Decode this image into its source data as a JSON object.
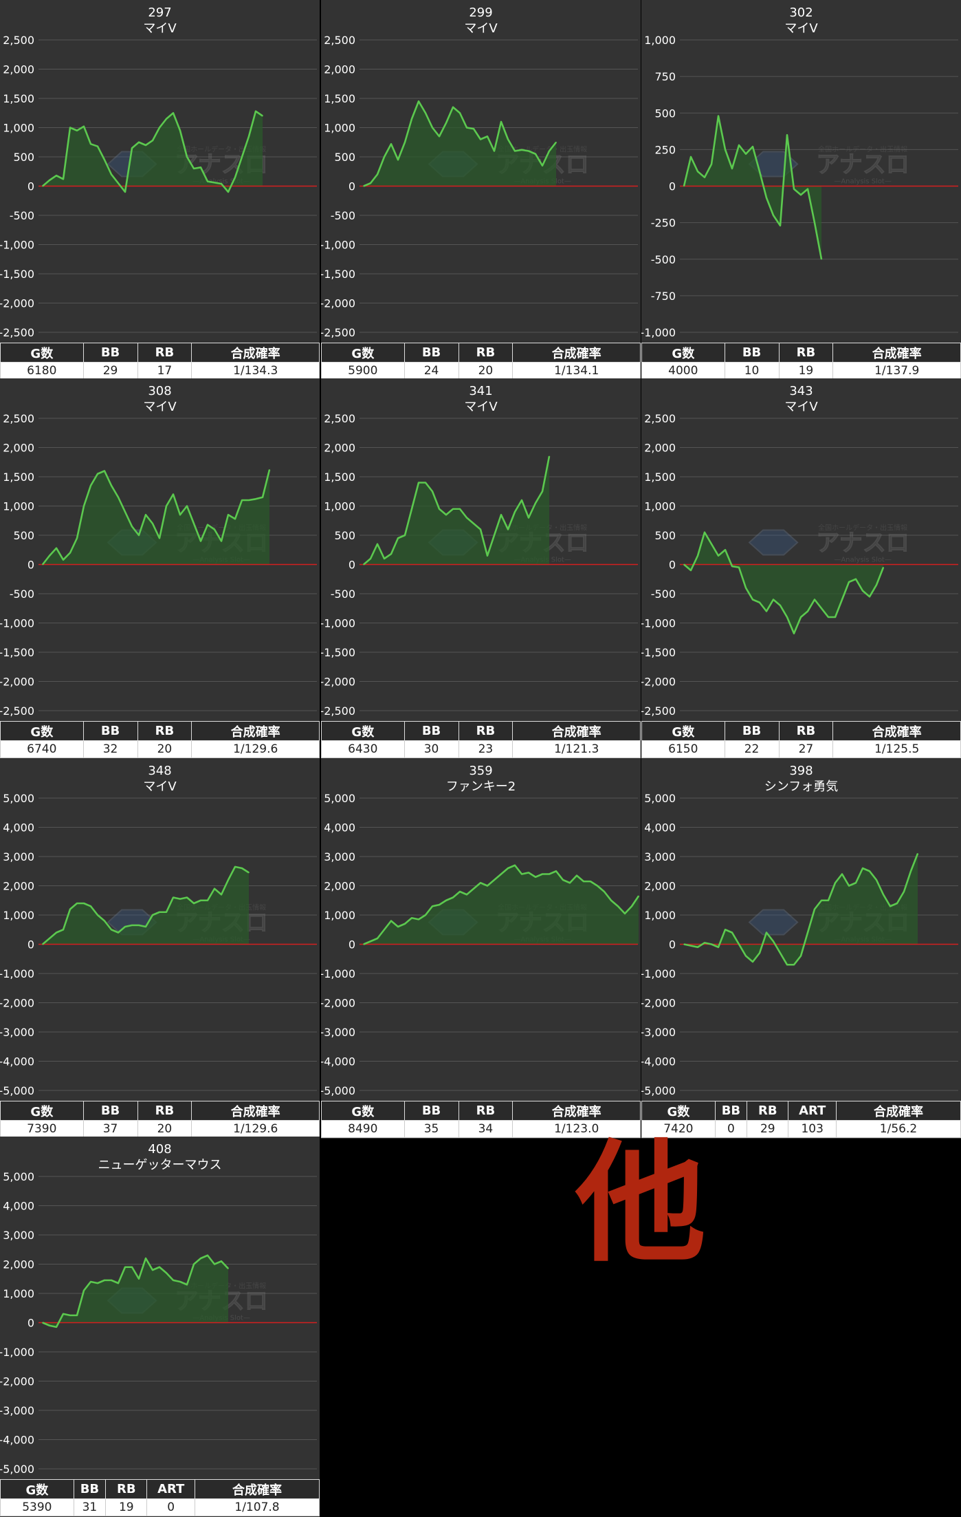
{
  "header_labels": {
    "g": "G数",
    "bb": "BB",
    "rb": "RB",
    "art": "ART",
    "rate": "合成確率"
  },
  "other_label": "他",
  "colors": {
    "line": "#5cc94f",
    "fill": "#2b5a2b",
    "zero_line": "#d41f1f",
    "panel": "#333333",
    "grid": "#555555"
  },
  "watermark": {
    "main": "アナスロ",
    "sub": "—Analysis Slot—",
    "top": "全国ホールデータ・出玉情報"
  },
  "chart_data": [
    {
      "type": "line",
      "number": "297",
      "model": "マイV",
      "ylim": [
        -2500,
        2500
      ],
      "yticks": [
        2500,
        2000,
        1500,
        1000,
        500,
        0,
        -500,
        -1000,
        -1500,
        -2000,
        -2500
      ],
      "values": [
        0,
        100,
        180,
        120,
        1000,
        950,
        1020,
        720,
        680,
        450,
        200,
        50,
        -100,
        650,
        750,
        700,
        780,
        1000,
        1150,
        1250,
        950,
        500,
        300,
        320,
        80,
        60,
        40,
        -100,
        150,
        500,
        850,
        1280,
        1200
      ],
      "stats": {
        "g": "6180",
        "bb": "29",
        "rb": "17",
        "art": null,
        "rate": "1/134.3"
      }
    },
    {
      "type": "line",
      "number": "299",
      "model": "マイV",
      "ylim": [
        -2500,
        2500
      ],
      "yticks": [
        2500,
        2000,
        1500,
        1000,
        500,
        0,
        -500,
        -1000,
        -1500,
        -2000,
        -2500
      ],
      "values": [
        0,
        50,
        200,
        500,
        720,
        450,
        750,
        1150,
        1450,
        1250,
        1000,
        850,
        1080,
        1350,
        1250,
        1000,
        980,
        800,
        850,
        600,
        1100,
        800,
        600,
        620,
        600,
        550,
        350,
        600,
        750
      ],
      "stats": {
        "g": "5900",
        "bb": "24",
        "rb": "20",
        "art": null,
        "rate": "1/134.1"
      }
    },
    {
      "type": "line",
      "number": "302",
      "model": "マイV",
      "ylim": [
        -1000,
        1000
      ],
      "yticks": [
        1000,
        750,
        500,
        250,
        0,
        -250,
        -500,
        -750,
        -1000
      ],
      "values": [
        0,
        200,
        100,
        60,
        150,
        480,
        250,
        120,
        280,
        220,
        270,
        100,
        -80,
        -200,
        -270,
        350,
        -20,
        -60,
        -20,
        -250,
        -500
      ],
      "stats": {
        "g": "4000",
        "bb": "10",
        "rb": "19",
        "art": null,
        "rate": "1/137.9"
      }
    },
    {
      "type": "line",
      "number": "308",
      "model": "マイV",
      "ylim": [
        -2500,
        2500
      ],
      "yticks": [
        2500,
        2000,
        1500,
        1000,
        500,
        0,
        -500,
        -1000,
        -1500,
        -2000,
        -2500
      ],
      "values": [
        0,
        150,
        280,
        80,
        200,
        450,
        1000,
        1350,
        1550,
        1600,
        1350,
        1150,
        900,
        650,
        500,
        850,
        700,
        450,
        1000,
        1200,
        850,
        1000,
        700,
        400,
        680,
        600,
        400,
        850,
        780,
        1100,
        1100,
        1120,
        1150,
        1620
      ],
      "stats": {
        "g": "6740",
        "bb": "32",
        "rb": "20",
        "art": null,
        "rate": "1/129.6"
      }
    },
    {
      "type": "line",
      "number": "341",
      "model": "マイV",
      "ylim": [
        -2500,
        2500
      ],
      "yticks": [
        2500,
        2000,
        1500,
        1000,
        500,
        0,
        -500,
        -1000,
        -1500,
        -2000,
        -2500
      ],
      "values": [
        0,
        100,
        350,
        100,
        180,
        450,
        500,
        950,
        1400,
        1400,
        1250,
        950,
        850,
        950,
        950,
        800,
        700,
        600,
        150,
        500,
        850,
        600,
        900,
        1100,
        800,
        1050,
        1250,
        1850
      ],
      "stats": {
        "g": "6430",
        "bb": "30",
        "rb": "23",
        "art": null,
        "rate": "1/121.3"
      }
    },
    {
      "type": "line",
      "number": "343",
      "model": "マイV",
      "ylim": [
        -2500,
        2500
      ],
      "yticks": [
        2500,
        2000,
        1500,
        1000,
        500,
        0,
        -500,
        -1000,
        -1500,
        -2000,
        -2500
      ],
      "values": [
        0,
        -100,
        150,
        550,
        350,
        150,
        250,
        -30,
        -50,
        -400,
        -600,
        -650,
        -800,
        -600,
        -700,
        -900,
        -1180,
        -900,
        -800,
        -600,
        -750,
        -900,
        -900,
        -600,
        -300,
        -250,
        -450,
        -550,
        -350,
        -50
      ],
      "stats": {
        "g": "6150",
        "bb": "22",
        "rb": "27",
        "art": null,
        "rate": "1/125.5"
      }
    },
    {
      "type": "line",
      "number": "348",
      "model": "マイV",
      "ylim": [
        -5000,
        5000
      ],
      "yticks": [
        5000,
        4000,
        3000,
        2000,
        1000,
        0,
        -1000,
        -2000,
        -3000,
        -4000,
        -5000
      ],
      "values": [
        0,
        200,
        400,
        500,
        1200,
        1400,
        1400,
        1300,
        1000,
        800,
        500,
        400,
        600,
        650,
        650,
        600,
        1000,
        1100,
        1100,
        1600,
        1550,
        1600,
        1400,
        1500,
        1500,
        1900,
        1700,
        2200,
        2650,
        2600,
        2450
      ],
      "stats": {
        "g": "7390",
        "bb": "37",
        "rb": "20",
        "art": null,
        "rate": "1/129.6"
      }
    },
    {
      "type": "line",
      "number": "359",
      "model": "ファンキー2",
      "ylim": [
        -5000,
        5000
      ],
      "yticks": [
        5000,
        4000,
        3000,
        2000,
        1000,
        0,
        -1000,
        -2000,
        -3000,
        -4000,
        -5000
      ],
      "values": [
        0,
        100,
        200,
        500,
        800,
        600,
        700,
        900,
        850,
        1000,
        1300,
        1350,
        1500,
        1600,
        1800,
        1700,
        1900,
        2100,
        2000,
        2200,
        2400,
        2600,
        2700,
        2400,
        2450,
        2300,
        2400,
        2400,
        2500,
        2200,
        2100,
        2350,
        2150,
        2150,
        2000,
        1800,
        1500,
        1300,
        1050,
        1300,
        1650
      ],
      "stats": {
        "g": "8490",
        "bb": "35",
        "rb": "34",
        "art": null,
        "rate": "1/123.0"
      }
    },
    {
      "type": "line",
      "number": "398",
      "model": "シンフォ勇気",
      "ylim": [
        -5000,
        5000
      ],
      "yticks": [
        5000,
        4000,
        3000,
        2000,
        1000,
        0,
        -1000,
        -2000,
        -3000,
        -4000,
        -5000
      ],
      "values": [
        0,
        -50,
        -100,
        50,
        0,
        -100,
        500,
        400,
        0,
        -400,
        -600,
        -300,
        400,
        100,
        -300,
        -700,
        -700,
        -400,
        400,
        1200,
        1500,
        1500,
        2100,
        2400,
        2000,
        2100,
        2600,
        2500,
        2200,
        1700,
        1300,
        1400,
        1800,
        2500,
        3100
      ],
      "stats": {
        "g": "7420",
        "bb": "0",
        "rb": "29",
        "art": "103",
        "rate": "1/56.2"
      }
    },
    {
      "type": "line",
      "number": "408",
      "model": "ニューゲッターマウス",
      "ylim": [
        -5000,
        5000
      ],
      "yticks": [
        5000,
        4000,
        3000,
        2000,
        1000,
        0,
        -1000,
        -2000,
        -3000,
        -4000,
        -5000
      ],
      "values": [
        0,
        -100,
        -150,
        300,
        250,
        250,
        1100,
        1400,
        1350,
        1450,
        1450,
        1350,
        1900,
        1900,
        1500,
        2200,
        1800,
        1900,
        1700,
        1450,
        1400,
        1300,
        2000,
        2200,
        2300,
        2000,
        2100,
        1850
      ],
      "stats": {
        "g": "5390",
        "bb": "31",
        "rb": "19",
        "art": "0",
        "rate": "1/107.8"
      }
    }
  ]
}
